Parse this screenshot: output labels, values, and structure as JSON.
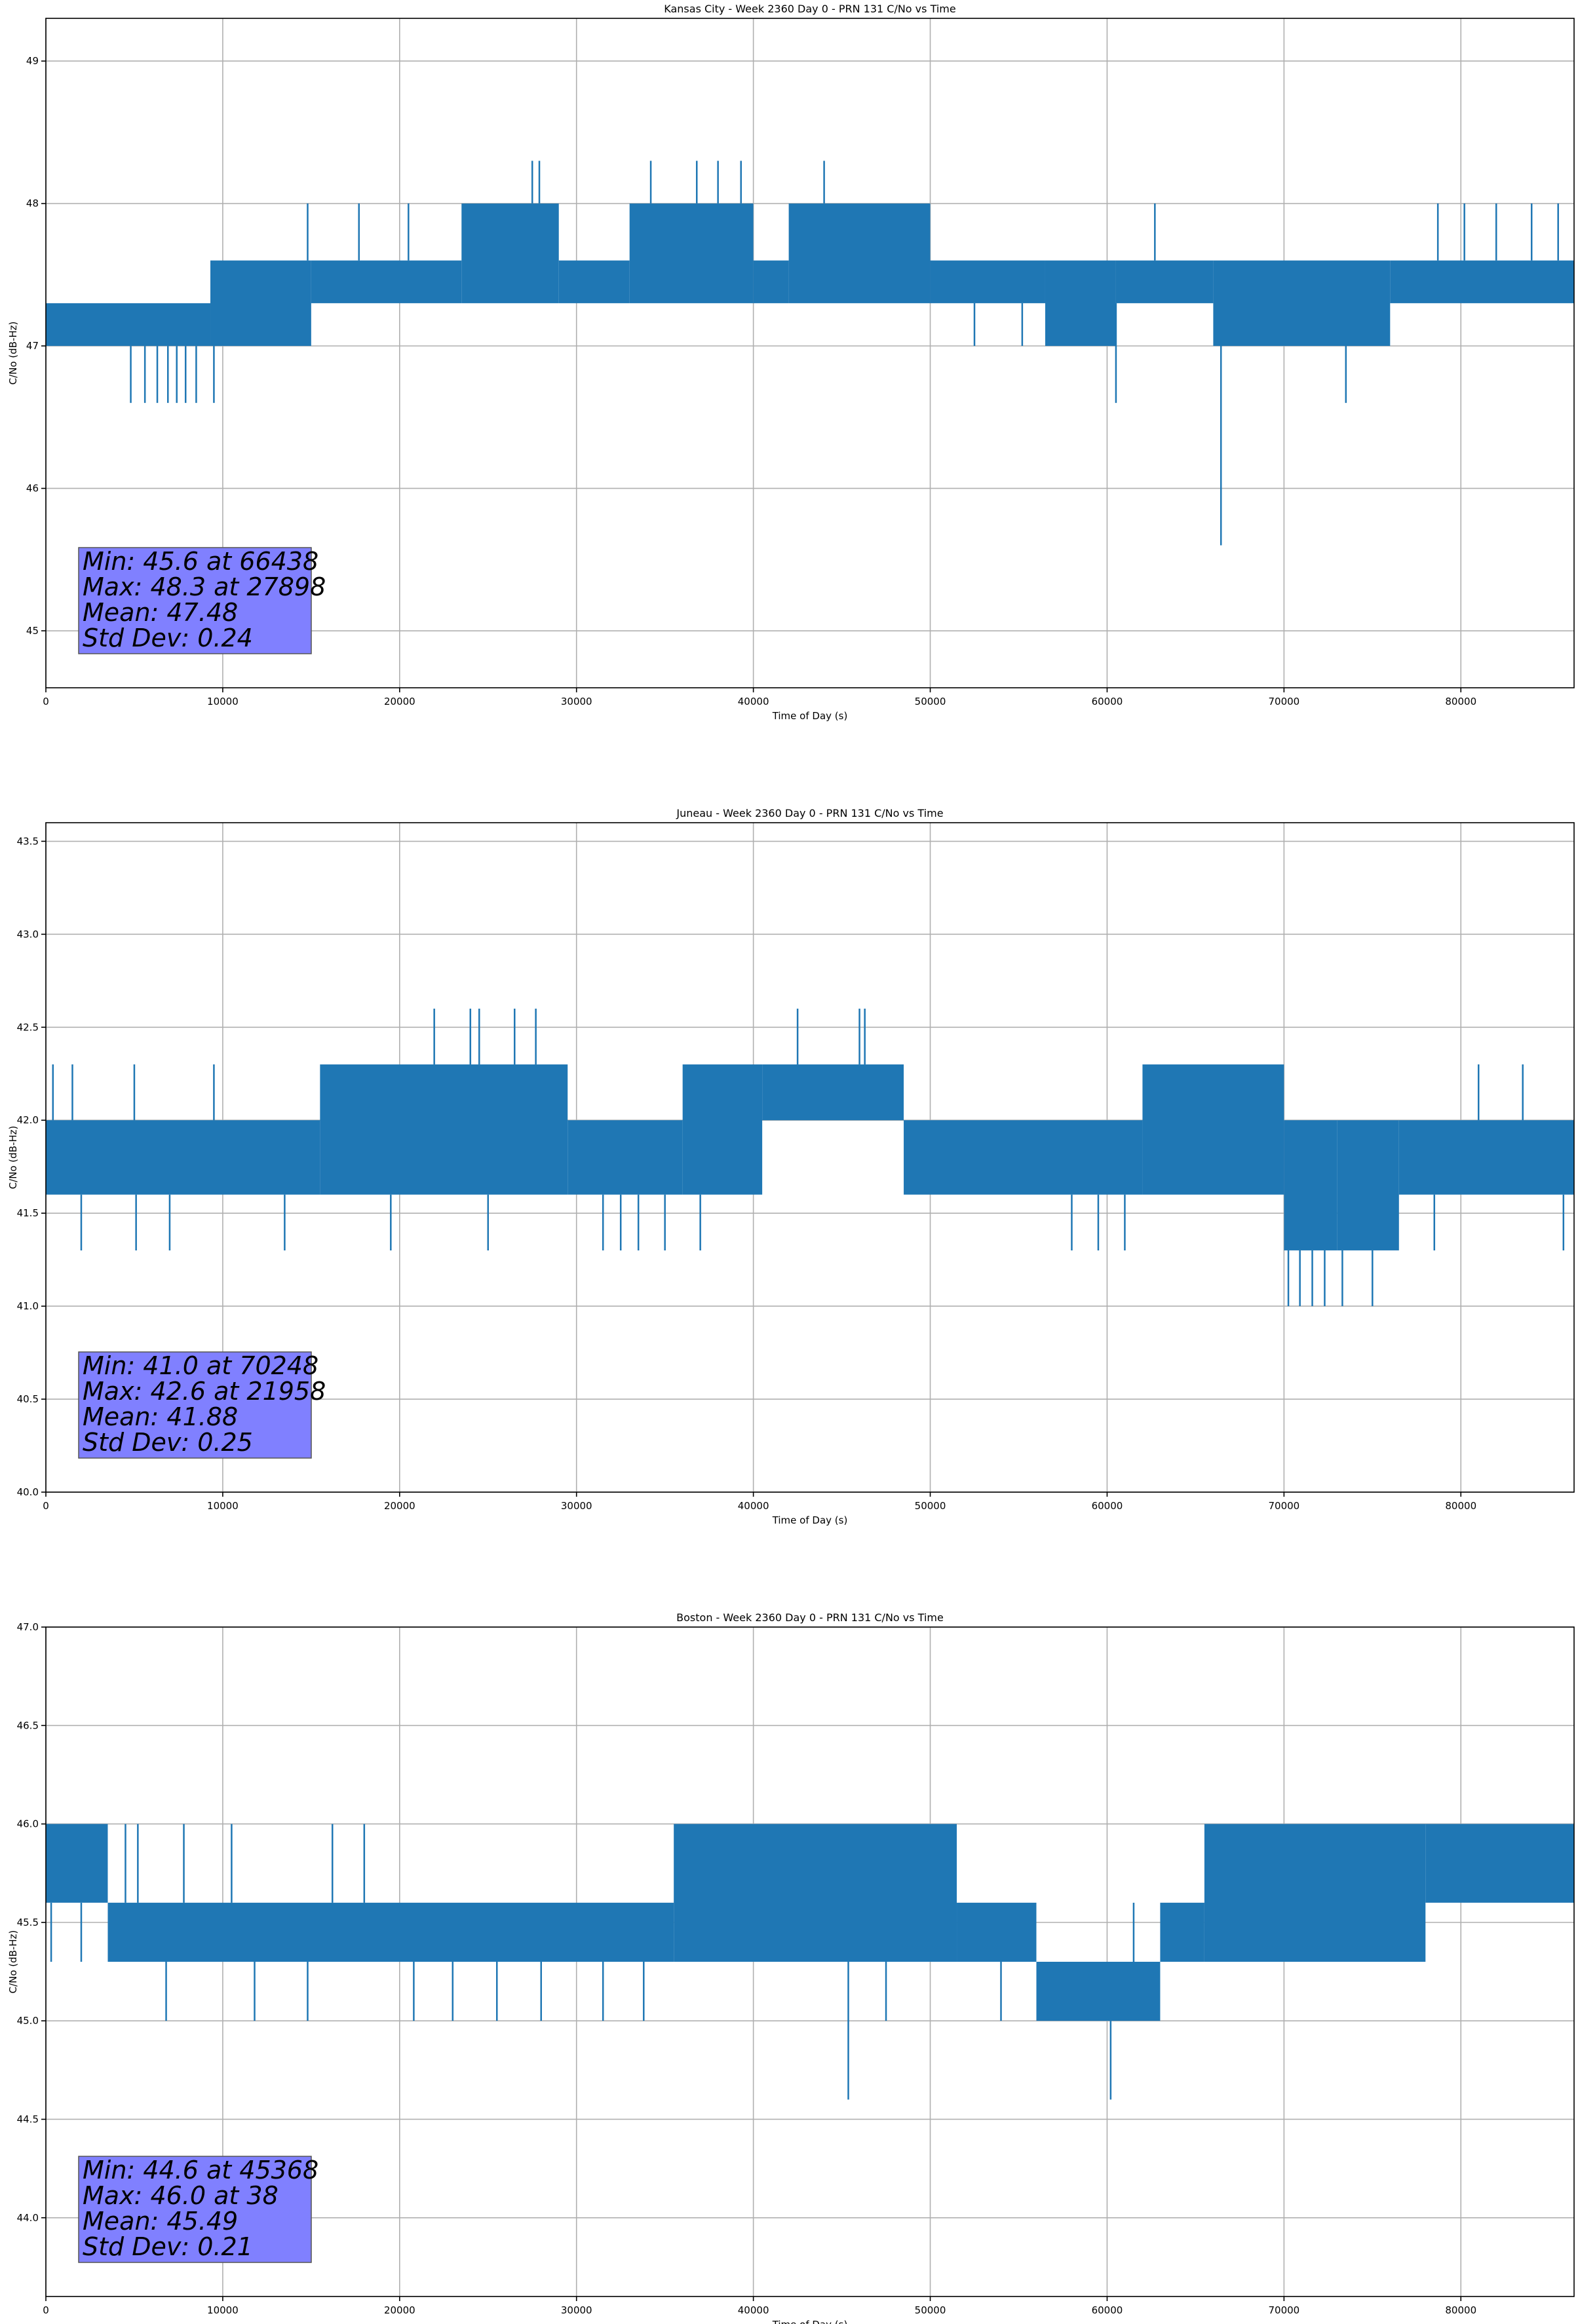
{
  "chart_data": [
    {
      "type": "line",
      "title": "Kansas City - Week 2360 Day 0 - PRN 131 C/No vs Time",
      "xlabel": "Time of Day (s)",
      "ylabel": "C/No (dB-Hz)",
      "xlim": [
        0,
        86400
      ],
      "ylim": [
        44.6,
        49.3
      ],
      "xticks": [
        0,
        10000,
        20000,
        30000,
        40000,
        50000,
        60000,
        70000,
        80000
      ],
      "yticks": [
        45,
        46,
        47,
        48,
        49
      ],
      "ytick_labels": [
        "45",
        "46",
        "47",
        "48",
        "49"
      ],
      "grid": true,
      "series_color": "#1f77b4",
      "bands": [
        {
          "x": [
            0,
            9300
          ],
          "lo": 47.0,
          "hi": 47.3
        },
        {
          "x": [
            9300,
            15000
          ],
          "lo": 47.0,
          "hi": 47.6
        },
        {
          "x": [
            15000,
            23500
          ],
          "lo": 47.3,
          "hi": 47.6
        },
        {
          "x": [
            23500,
            29000
          ],
          "lo": 47.3,
          "hi": 48.0
        },
        {
          "x": [
            29000,
            33000
          ],
          "lo": 47.3,
          "hi": 47.6
        },
        {
          "x": [
            33000,
            40000
          ],
          "lo": 47.3,
          "hi": 48.0
        },
        {
          "x": [
            40000,
            42000
          ],
          "lo": 47.3,
          "hi": 47.6
        },
        {
          "x": [
            42000,
            50000
          ],
          "lo": 47.3,
          "hi": 48.0
        },
        {
          "x": [
            50000,
            56500
          ],
          "lo": 47.3,
          "hi": 47.6
        },
        {
          "x": [
            56500,
            60500
          ],
          "lo": 47.0,
          "hi": 47.6
        },
        {
          "x": [
            60500,
            66000
          ],
          "lo": 47.3,
          "hi": 47.6
        },
        {
          "x": [
            66000,
            76000
          ],
          "lo": 47.0,
          "hi": 47.6
        },
        {
          "x": [
            76000,
            86400
          ],
          "lo": 47.3,
          "hi": 47.6
        }
      ],
      "spikes": [
        {
          "x": 4800,
          "lo": 46.6,
          "hi": 47.0
        },
        {
          "x": 5600,
          "lo": 46.6,
          "hi": 47.0
        },
        {
          "x": 6300,
          "lo": 46.6,
          "hi": 47.0
        },
        {
          "x": 6900,
          "lo": 46.6,
          "hi": 47.0
        },
        {
          "x": 7400,
          "lo": 46.6,
          "hi": 47.0
        },
        {
          "x": 7900,
          "lo": 46.6,
          "hi": 47.0
        },
        {
          "x": 8500,
          "lo": 46.6,
          "hi": 47.0
        },
        {
          "x": 9500,
          "lo": 46.6,
          "hi": 47.0
        },
        {
          "x": 14800,
          "lo": 47.6,
          "hi": 48.0
        },
        {
          "x": 17700,
          "lo": 47.6,
          "hi": 48.0
        },
        {
          "x": 20500,
          "lo": 47.6,
          "hi": 48.0
        },
        {
          "x": 27500,
          "lo": 48.0,
          "hi": 48.3
        },
        {
          "x": 27900,
          "lo": 48.0,
          "hi": 48.3
        },
        {
          "x": 34200,
          "lo": 48.0,
          "hi": 48.3
        },
        {
          "x": 36800,
          "lo": 48.0,
          "hi": 48.3
        },
        {
          "x": 38000,
          "lo": 48.0,
          "hi": 48.3
        },
        {
          "x": 39300,
          "lo": 48.0,
          "hi": 48.3
        },
        {
          "x": 44000,
          "lo": 48.0,
          "hi": 48.3
        },
        {
          "x": 52500,
          "lo": 47.0,
          "hi": 47.3
        },
        {
          "x": 55200,
          "lo": 47.0,
          "hi": 47.3
        },
        {
          "x": 60500,
          "lo": 46.6,
          "hi": 47.3
        },
        {
          "x": 62700,
          "lo": 47.6,
          "hi": 48.0
        },
        {
          "x": 66438,
          "lo": 45.6,
          "hi": 47.3
        },
        {
          "x": 73500,
          "lo": 46.6,
          "hi": 47.3
        },
        {
          "x": 78700,
          "lo": 47.6,
          "hi": 48.0
        },
        {
          "x": 80200,
          "lo": 47.6,
          "hi": 48.0
        },
        {
          "x": 82000,
          "lo": 47.6,
          "hi": 48.0
        },
        {
          "x": 84000,
          "lo": 47.6,
          "hi": 48.0
        },
        {
          "x": 85500,
          "lo": 47.6,
          "hi": 48.0
        }
      ],
      "stats": [
        "Min: 45.6 at 66438",
        "Max: 48.3 at 27898",
        "Mean: 47.48",
        "Std Dev: 0.24"
      ]
    },
    {
      "type": "line",
      "title": "Juneau - Week 2360 Day 0 - PRN 131 C/No vs Time",
      "xlabel": "Time of Day (s)",
      "ylabel": "C/No (dB-Hz)",
      "xlim": [
        0,
        86400
      ],
      "ylim": [
        40.0,
        43.6
      ],
      "xticks": [
        0,
        10000,
        20000,
        30000,
        40000,
        50000,
        60000,
        70000,
        80000
      ],
      "yticks": [
        40.0,
        40.5,
        41.0,
        41.5,
        42.0,
        42.5,
        43.0,
        43.5
      ],
      "ytick_labels": [
        "40.0",
        "40.5",
        "41.0",
        "41.5",
        "42.0",
        "42.5",
        "43.0",
        "43.5"
      ],
      "grid": true,
      "series_color": "#1f77b4",
      "bands": [
        {
          "x": [
            0,
            15500
          ],
          "lo": 41.6,
          "hi": 42.0
        },
        {
          "x": [
            15500,
            29500
          ],
          "lo": 41.6,
          "hi": 42.3
        },
        {
          "x": [
            29500,
            36000
          ],
          "lo": 41.6,
          "hi": 42.0
        },
        {
          "x": [
            36000,
            40500
          ],
          "lo": 41.6,
          "hi": 42.3
        },
        {
          "x": [
            40500,
            48500
          ],
          "lo": 42.0,
          "hi": 42.3
        },
        {
          "x": [
            48500,
            62000
          ],
          "lo": 41.6,
          "hi": 42.0
        },
        {
          "x": [
            62000,
            70000
          ],
          "lo": 41.6,
          "hi": 42.3
        },
        {
          "x": [
            70000,
            73000
          ],
          "lo": 41.3,
          "hi": 42.0
        },
        {
          "x": [
            73000,
            76500
          ],
          "lo": 41.3,
          "hi": 42.0
        },
        {
          "x": [
            76500,
            86400
          ],
          "lo": 41.6,
          "hi": 42.0
        }
      ],
      "spikes": [
        {
          "x": 400,
          "lo": 42.0,
          "hi": 42.3
        },
        {
          "x": 1500,
          "lo": 42.0,
          "hi": 42.3
        },
        {
          "x": 2000,
          "lo": 41.3,
          "hi": 41.6
        },
        {
          "x": 5000,
          "lo": 42.0,
          "hi": 42.3
        },
        {
          "x": 5100,
          "lo": 41.3,
          "hi": 41.6
        },
        {
          "x": 7000,
          "lo": 41.3,
          "hi": 41.6
        },
        {
          "x": 9500,
          "lo": 42.0,
          "hi": 42.3
        },
        {
          "x": 13500,
          "lo": 41.3,
          "hi": 41.6
        },
        {
          "x": 19500,
          "lo": 41.3,
          "hi": 41.6
        },
        {
          "x": 21958,
          "lo": 42.3,
          "hi": 42.6
        },
        {
          "x": 24000,
          "lo": 42.3,
          "hi": 42.6
        },
        {
          "x": 24500,
          "lo": 42.3,
          "hi": 42.6
        },
        {
          "x": 26500,
          "lo": 42.3,
          "hi": 42.6
        },
        {
          "x": 27700,
          "lo": 42.3,
          "hi": 42.6
        },
        {
          "x": 25000,
          "lo": 41.3,
          "hi": 41.6
        },
        {
          "x": 31500,
          "lo": 41.3,
          "hi": 41.6
        },
        {
          "x": 32500,
          "lo": 41.3,
          "hi": 41.6
        },
        {
          "x": 33500,
          "lo": 41.3,
          "hi": 41.6
        },
        {
          "x": 35000,
          "lo": 41.3,
          "hi": 41.6
        },
        {
          "x": 37000,
          "lo": 41.3,
          "hi": 41.6
        },
        {
          "x": 42500,
          "lo": 42.3,
          "hi": 42.6
        },
        {
          "x": 46000,
          "lo": 42.3,
          "hi": 42.6
        },
        {
          "x": 46300,
          "lo": 42.3,
          "hi": 42.6
        },
        {
          "x": 58000,
          "lo": 41.3,
          "hi": 41.6
        },
        {
          "x": 59500,
          "lo": 41.3,
          "hi": 41.6
        },
        {
          "x": 61000,
          "lo": 41.3,
          "hi": 41.6
        },
        {
          "x": 70248,
          "lo": 41.0,
          "hi": 41.3
        },
        {
          "x": 70900,
          "lo": 41.0,
          "hi": 41.3
        },
        {
          "x": 71600,
          "lo": 41.0,
          "hi": 41.3
        },
        {
          "x": 72300,
          "lo": 41.0,
          "hi": 41.3
        },
        {
          "x": 73300,
          "lo": 41.0,
          "hi": 41.3
        },
        {
          "x": 75000,
          "lo": 41.0,
          "hi": 41.3
        },
        {
          "x": 78500,
          "lo": 41.3,
          "hi": 41.6
        },
        {
          "x": 81000,
          "lo": 42.0,
          "hi": 42.3
        },
        {
          "x": 83500,
          "lo": 42.0,
          "hi": 42.3
        },
        {
          "x": 85800,
          "lo": 41.3,
          "hi": 41.6
        }
      ],
      "stats": [
        "Min: 41.0 at 70248",
        "Max: 42.6 at 21958",
        "Mean: 41.88",
        "Std Dev: 0.25"
      ]
    },
    {
      "type": "line",
      "title": "Boston - Week 2360 Day 0 - PRN 131 C/No vs Time",
      "xlabel": "Time of Day (s)",
      "ylabel": "C/No (dB-Hz)",
      "xlim": [
        0,
        86400
      ],
      "ylim": [
        43.6,
        47.0
      ],
      "xticks": [
        0,
        10000,
        20000,
        30000,
        40000,
        50000,
        60000,
        70000,
        80000
      ],
      "yticks": [
        44.0,
        44.5,
        45.0,
        45.5,
        46.0,
        46.5,
        47.0
      ],
      "ytick_labels": [
        "44.0",
        "44.5",
        "45.0",
        "45.5",
        "46.0",
        "46.5",
        "47.0"
      ],
      "grid": true,
      "series_color": "#1f77b4",
      "bands": [
        {
          "x": [
            0,
            3500
          ],
          "lo": 45.6,
          "hi": 46.0
        },
        {
          "x": [
            3500,
            35500
          ],
          "lo": 45.3,
          "hi": 45.6
        },
        {
          "x": [
            35500,
            51500
          ],
          "lo": 45.3,
          "hi": 46.0
        },
        {
          "x": [
            51500,
            56000
          ],
          "lo": 45.3,
          "hi": 45.6
        },
        {
          "x": [
            56000,
            63000
          ],
          "lo": 45.0,
          "hi": 45.3
        },
        {
          "x": [
            63000,
            65500
          ],
          "lo": 45.3,
          "hi": 45.6
        },
        {
          "x": [
            65500,
            78000
          ],
          "lo": 45.3,
          "hi": 46.0
        },
        {
          "x": [
            78000,
            86400
          ],
          "lo": 45.6,
          "hi": 46.0
        }
      ],
      "spikes": [
        {
          "x": 300,
          "lo": 45.3,
          "hi": 45.6
        },
        {
          "x": 2000,
          "lo": 45.3,
          "hi": 45.6
        },
        {
          "x": 4500,
          "lo": 45.6,
          "hi": 46.0
        },
        {
          "x": 5200,
          "lo": 45.6,
          "hi": 46.0
        },
        {
          "x": 6800,
          "lo": 45.0,
          "hi": 45.3
        },
        {
          "x": 7800,
          "lo": 45.6,
          "hi": 46.0
        },
        {
          "x": 10500,
          "lo": 45.6,
          "hi": 46.0
        },
        {
          "x": 11800,
          "lo": 45.0,
          "hi": 45.3
        },
        {
          "x": 14800,
          "lo": 45.0,
          "hi": 45.3
        },
        {
          "x": 16200,
          "lo": 45.6,
          "hi": 46.0
        },
        {
          "x": 18000,
          "lo": 45.6,
          "hi": 46.0
        },
        {
          "x": 20800,
          "lo": 45.0,
          "hi": 45.3
        },
        {
          "x": 23000,
          "lo": 45.0,
          "hi": 45.3
        },
        {
          "x": 25500,
          "lo": 45.0,
          "hi": 45.3
        },
        {
          "x": 28000,
          "lo": 45.0,
          "hi": 45.3
        },
        {
          "x": 31500,
          "lo": 45.0,
          "hi": 45.3
        },
        {
          "x": 33800,
          "lo": 45.0,
          "hi": 45.3
        },
        {
          "x": 45368,
          "lo": 44.6,
          "hi": 45.3
        },
        {
          "x": 47500,
          "lo": 45.0,
          "hi": 45.3
        },
        {
          "x": 54000,
          "lo": 45.0,
          "hi": 45.3
        },
        {
          "x": 60200,
          "lo": 44.6,
          "hi": 45.0
        },
        {
          "x": 61500,
          "lo": 45.3,
          "hi": 45.6
        }
      ],
      "stats": [
        "Min: 44.6 at 45368",
        "Max: 46.0 at 38",
        "Mean: 45.49",
        "Std Dev: 0.21"
      ]
    }
  ]
}
